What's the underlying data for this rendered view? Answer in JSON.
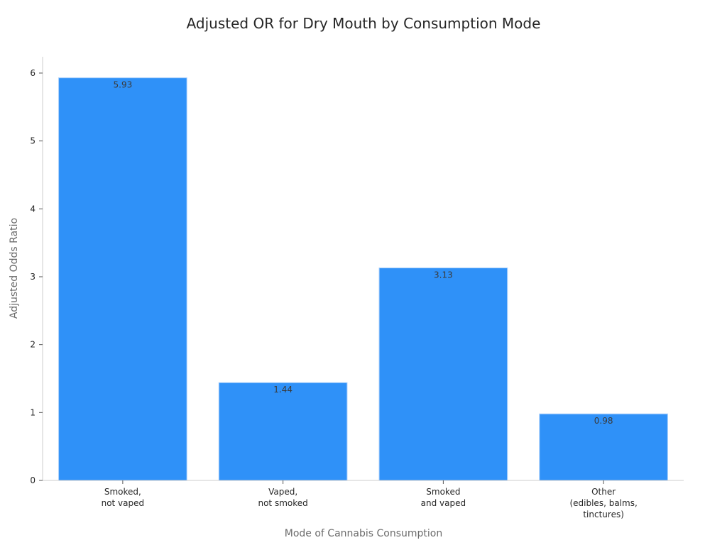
{
  "chart_data": {
    "type": "bar",
    "title": "Adjusted OR for Dry Mouth by Consumption Mode",
    "xlabel": "Mode of Cannabis Consumption",
    "ylabel": "Adjusted Odds Ratio",
    "categories": [
      [
        "Smoked,",
        "not vaped"
      ],
      [
        "Vaped,",
        "not smoked"
      ],
      [
        "Smoked",
        "and vaped"
      ],
      [
        "Other",
        "(edibles, balms,",
        "tinctures)"
      ]
    ],
    "values": [
      5.93,
      1.44,
      3.13,
      0.98
    ],
    "data_labels": [
      "5.93",
      "1.44",
      "3.13",
      "0.98"
    ],
    "y_ticks": [
      0,
      1,
      2,
      3,
      4,
      5,
      6
    ],
    "ylim": [
      0,
      6.24
    ],
    "grid": false,
    "legend": "none",
    "colors": {
      "bar": "#2f91f8",
      "bar_edge": "#a9cffb",
      "axis": "#cccccc",
      "text": "#262626",
      "axis_title": "#6b6b6b"
    }
  }
}
